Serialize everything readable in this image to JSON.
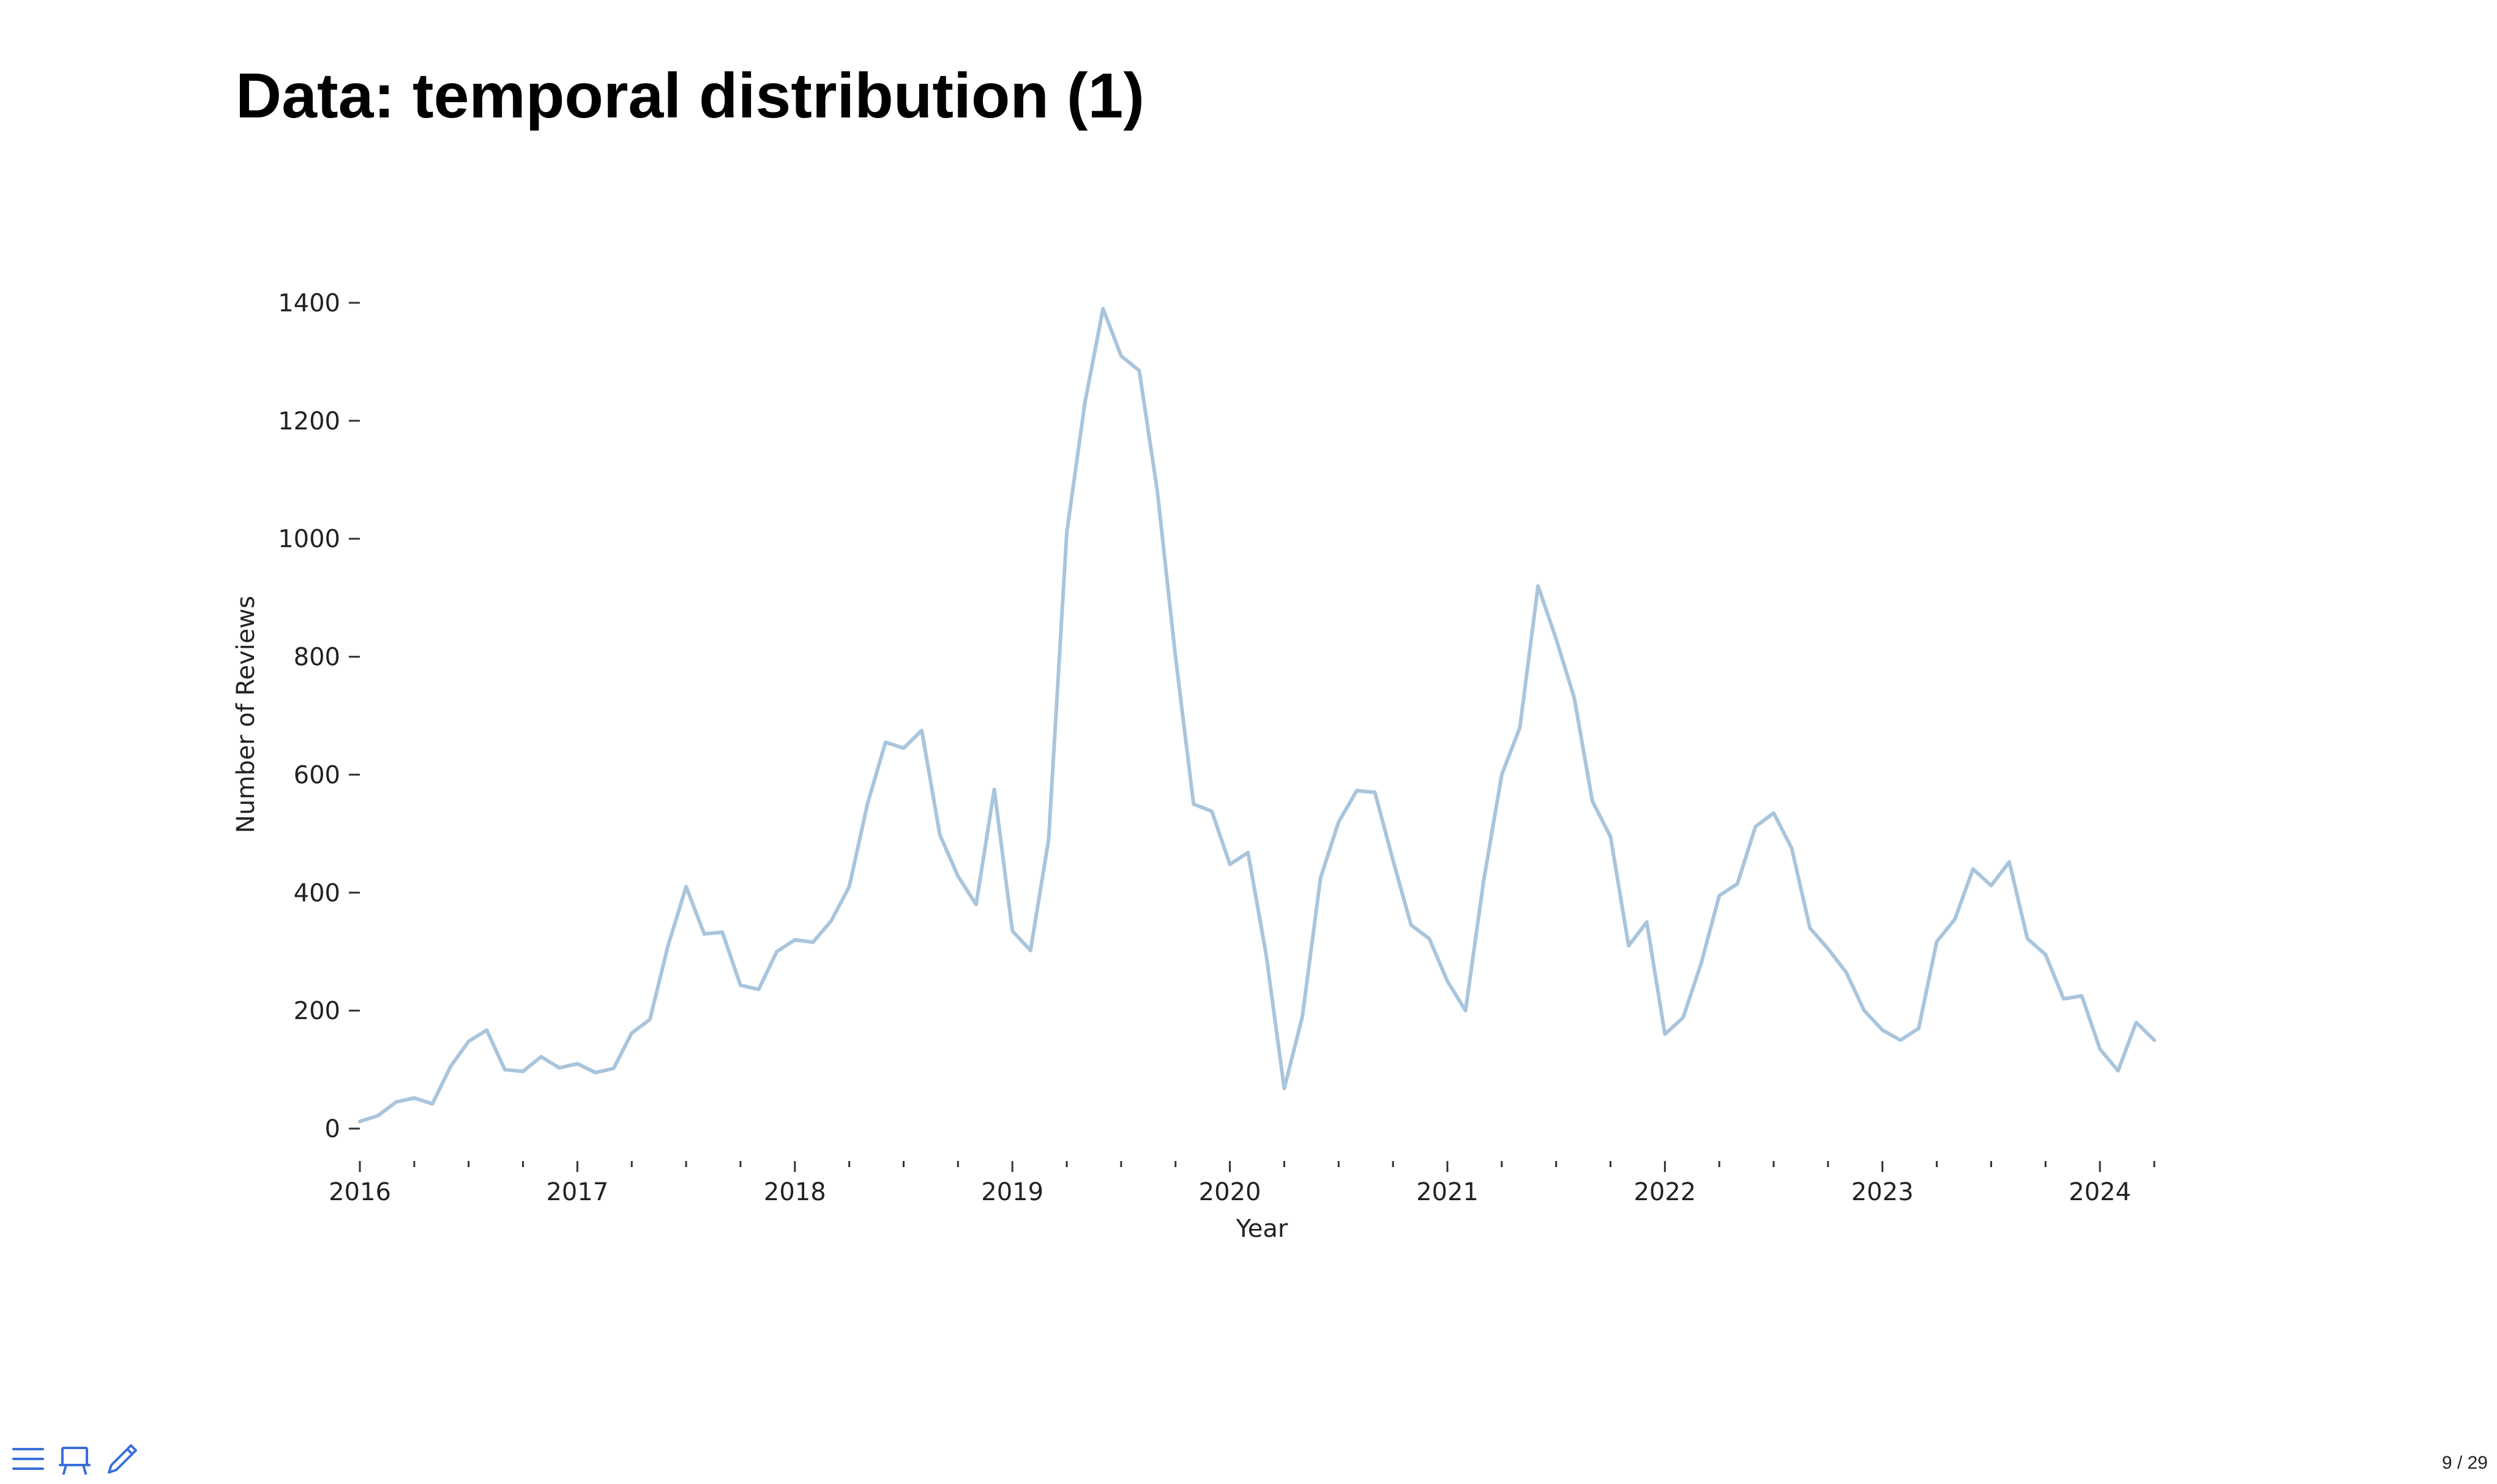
{
  "slide": {
    "title": "Data: temporal distribution (1)",
    "page_number": "9 / 29"
  },
  "toolbar": {
    "icons": [
      "menu-icon",
      "presentation-icon",
      "pen-icon"
    ],
    "accent_color": "#3a6fd8"
  },
  "chart_data": {
    "type": "line",
    "xlabel": "Year",
    "ylabel": "Number of Reviews",
    "x_tick_labels": [
      "2016",
      "2017",
      "2018",
      "2019",
      "2020",
      "2021",
      "2022",
      "2023",
      "2024"
    ],
    "y_ticks": [
      0,
      200,
      400,
      600,
      800,
      1000,
      1200,
      1400
    ],
    "xlim": [
      "2016-01",
      "2024-04"
    ],
    "ylim": [
      0,
      1400
    ],
    "grid": false,
    "line_color": "#a9c5dc",
    "series": [
      {
        "x": [
          "2016-01",
          "2016-02",
          "2016-03",
          "2016-04",
          "2016-05",
          "2016-06",
          "2016-07",
          "2016-08",
          "2016-09",
          "2016-10",
          "2016-11",
          "2016-12",
          "2017-01",
          "2017-02",
          "2017-03",
          "2017-04",
          "2017-05",
          "2017-06",
          "2017-07",
          "2017-08",
          "2017-09",
          "2017-10",
          "2017-11",
          "2017-12",
          "2018-01",
          "2018-02",
          "2018-03",
          "2018-04",
          "2018-05",
          "2018-06",
          "2018-07",
          "2018-08",
          "2018-09",
          "2018-10",
          "2018-11",
          "2018-12",
          "2019-01",
          "2019-02",
          "2019-03",
          "2019-04",
          "2019-05",
          "2019-06",
          "2019-07",
          "2019-08",
          "2019-09",
          "2019-10",
          "2019-11",
          "2019-12",
          "2020-01",
          "2020-02",
          "2020-03",
          "2020-04",
          "2020-05",
          "2020-06",
          "2020-07",
          "2020-08",
          "2020-09",
          "2020-10",
          "2020-11",
          "2020-12",
          "2021-01",
          "2021-02",
          "2021-03",
          "2021-04",
          "2021-05",
          "2021-06",
          "2021-07",
          "2021-08",
          "2021-09",
          "2021-10",
          "2021-11",
          "2021-12",
          "2022-01",
          "2022-02",
          "2022-03",
          "2022-04",
          "2022-05",
          "2022-06",
          "2022-07",
          "2022-08",
          "2022-09",
          "2022-10",
          "2022-11",
          "2022-12",
          "2023-01",
          "2023-02",
          "2023-03",
          "2023-04",
          "2023-05",
          "2023-06",
          "2023-07",
          "2023-08",
          "2023-09",
          "2023-10",
          "2023-11",
          "2023-12",
          "2024-01",
          "2024-02",
          "2024-03",
          "2024-04"
        ],
        "y": [
          12,
          22,
          45,
          52,
          42,
          105,
          148,
          167,
          100,
          97,
          122,
          103,
          110,
          95,
          102,
          162,
          185,
          310,
          410,
          330,
          333,
          243,
          236,
          300,
          320,
          316,
          352,
          410,
          550,
          655,
          645,
          675,
          498,
          428,
          380,
          575,
          335,
          302,
          490,
          1010,
          1230,
          1390,
          1310,
          1285,
          1080,
          800,
          550,
          538,
          448,
          468,
          295,
          68,
          190,
          425,
          520,
          573,
          570,
          455,
          345,
          322,
          250,
          200,
          420,
          600,
          680,
          920,
          830,
          730,
          555,
          495,
          310,
          350,
          160,
          188,
          280,
          395,
          415,
          512,
          535,
          475,
          340,
          305,
          265,
          200,
          167,
          150,
          170,
          317,
          355,
          440,
          412,
          452,
          322,
          295,
          220,
          225,
          135,
          98,
          180,
          150
        ]
      }
    ]
  }
}
